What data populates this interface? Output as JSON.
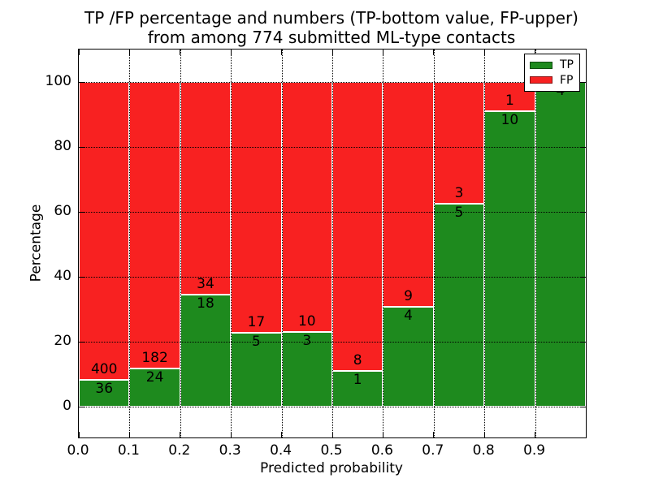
{
  "chart_data": {
    "type": "bar",
    "stacked": true,
    "orientation": "vertical",
    "title": "TP /FP percentage and numbers (TP-bottom value, FP-upper)\nfrom among 774 submitted ML-type contacts",
    "title_lines": [
      "TP /FP percentage and numbers (TP-bottom value, FP-upper)",
      "from among 774 submitted ML-type contacts"
    ],
    "xlabel": "Predicted probability",
    "ylabel": "Percentage",
    "x_tick_labels": [
      "0.0",
      "0.1",
      "0.2",
      "0.3",
      "0.4",
      "0.5",
      "0.6",
      "0.7",
      "0.8",
      "0.9"
    ],
    "y_tick_labels": [
      "0",
      "20",
      "40",
      "60",
      "80",
      "100"
    ],
    "y_tick_values": [
      0,
      20,
      40,
      60,
      80,
      100
    ],
    "xlim": [
      0.0,
      1.0
    ],
    "ylim": [
      -10,
      110
    ],
    "grid": true,
    "grid_style": "dotted",
    "bar_value_unit": "percent of bin total (tp+fp)",
    "total_contacts": 774,
    "bin_width": 0.1,
    "bins": [
      {
        "x_start": 0.0,
        "x_end": 0.1,
        "tp": 36,
        "fp": 400
      },
      {
        "x_start": 0.1,
        "x_end": 0.2,
        "tp": 24,
        "fp": 182
      },
      {
        "x_start": 0.2,
        "x_end": 0.3,
        "tp": 18,
        "fp": 34
      },
      {
        "x_start": 0.3,
        "x_end": 0.4,
        "tp": 5,
        "fp": 17
      },
      {
        "x_start": 0.4,
        "x_end": 0.5,
        "tp": 3,
        "fp": 10
      },
      {
        "x_start": 0.5,
        "x_end": 0.6,
        "tp": 1,
        "fp": 8
      },
      {
        "x_start": 0.6,
        "x_end": 0.7,
        "tp": 4,
        "fp": 9
      },
      {
        "x_start": 0.7,
        "x_end": 0.8,
        "tp": 5,
        "fp": 3
      },
      {
        "x_start": 0.8,
        "x_end": 0.9,
        "tp": 10,
        "fp": 1
      },
      {
        "x_start": 0.9,
        "x_end": 1.0,
        "tp": 4,
        "fp": 0
      }
    ],
    "series": [
      {
        "name": "TP",
        "color": "#1e8a1e",
        "values": [
          36,
          24,
          18,
          5,
          3,
          1,
          4,
          5,
          10,
          4
        ]
      },
      {
        "name": "FP",
        "color": "#f82121",
        "values": [
          400,
          182,
          34,
          17,
          10,
          8,
          9,
          3,
          1,
          0
        ]
      }
    ],
    "legend": {
      "position": "upper right",
      "entries": [
        {
          "label": "TP",
          "color": "#1e8a1e"
        },
        {
          "label": "FP",
          "color": "#f82121"
        }
      ]
    },
    "colors": {
      "tp": "#1e8a1e",
      "fp": "#f82121",
      "grid": "#000000",
      "bar_edge": "#ffffff",
      "background": "#ffffff",
      "text": "#000000"
    }
  }
}
